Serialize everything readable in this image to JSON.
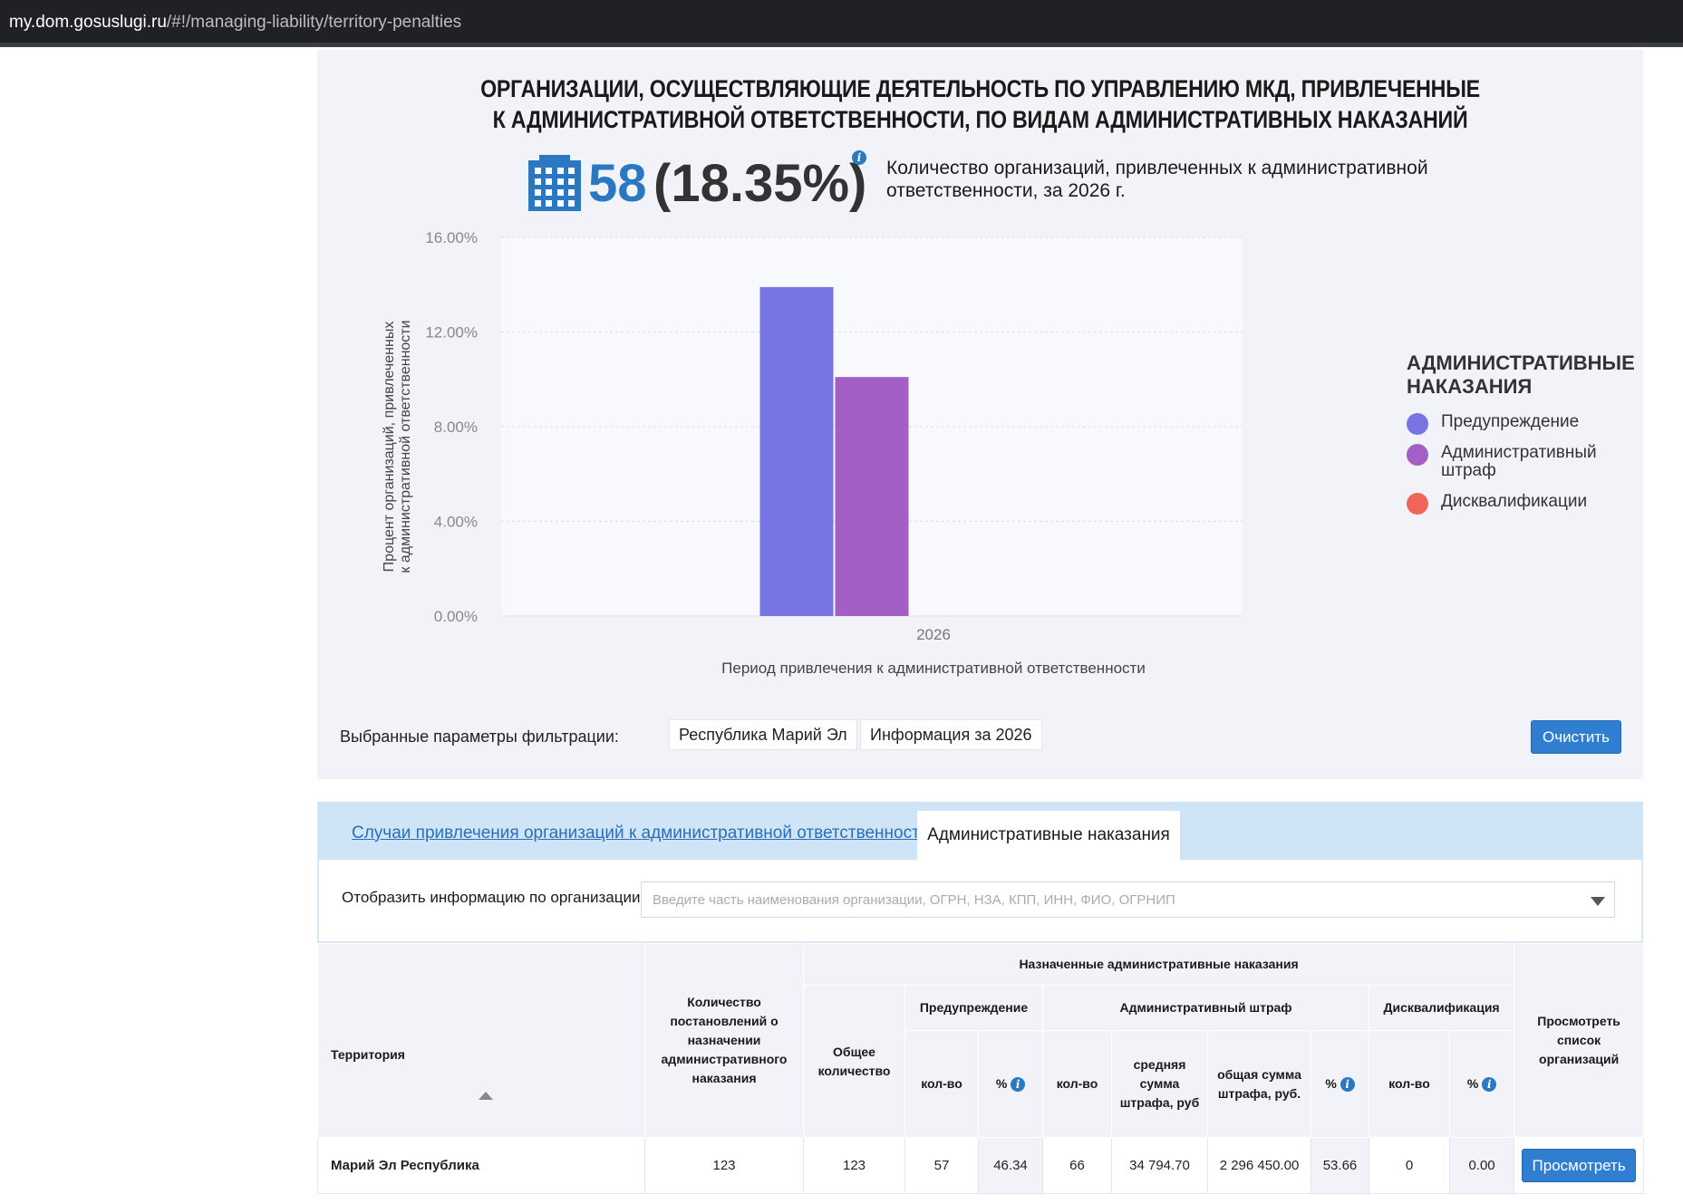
{
  "browser": {
    "url_domain": "my.dom.gosuslugi.ru",
    "url_path": "/#!/managing-liability/territory-penalties"
  },
  "header": {
    "title_line1": "ОРГАНИЗАЦИИ, ОСУЩЕСТВЛЯЮЩИЕ ДЕЯТЕЛЬНОСТЬ ПО УПРАВЛЕНИЮ МКД, ПРИВЛЕЧЕННЫЕ",
    "title_line2": "К АДМИНИСТРАТИВНОЙ ОТВЕТСТВЕННОСТИ, ПО ВИДАМ АДМИНИСТРАТИВНЫХ НАКАЗАНИЙ",
    "kpi_count": "58",
    "kpi_percent": "(18.35%)",
    "kpi_description": "Количество организаций, привлеченных к административной ответственности, за 2026 г.",
    "kpi_icon": "building-icon",
    "info_icon": "info-icon"
  },
  "chart_data": {
    "type": "bar",
    "categories": [
      "2026"
    ],
    "series": [
      {
        "name": "Предупреждение",
        "values": [
          13.9
        ],
        "color": "#7675e3"
      },
      {
        "name": "Административный штраф",
        "values": [
          10.1
        ],
        "color": "#a45fc7"
      },
      {
        "name": "Дисквалификации",
        "values": [
          0
        ],
        "color": "#f06759"
      }
    ],
    "ylim": [
      0,
      16
    ],
    "yticks": [
      "0.00%",
      "4.00%",
      "8.00%",
      "12.00%",
      "16.00%"
    ],
    "ylabel_line1": "Процент организаций, привлеченных",
    "ylabel_line2": "к административной ответственности",
    "xlabel": "Период привлечения к административной ответственности",
    "legend_title_line1": "АДМИНИСТРАТИВНЫЕ",
    "legend_title_line2": "НАКАЗАНИЯ",
    "legend_placement": "right",
    "grid": true
  },
  "filters": {
    "label": "Выбранные параметры фильтрации:",
    "chips": [
      "Республика Марий Эл",
      "Информация за 2026"
    ],
    "clear_label": "Очистить"
  },
  "tabs": {
    "link_label": "Случаи привлечения организаций к административной ответственности",
    "active_label": "Административные наказания"
  },
  "org_filter": {
    "label": "Отобразить информацию по организации",
    "placeholder": "Введите часть наименования организации, ОГРН, НЗА, КПП, ИНН, ФИО, ОГРНИП",
    "value": ""
  },
  "table": {
    "headers": {
      "territory": "Территория",
      "decisions_count": "Количество постановлений о назначении административного наказания",
      "assigned_group": "Назначенные административные наказания",
      "total": "Общее количество",
      "warning": "Предупреждение",
      "fine": "Административный штраф",
      "disqualification": "Дисквалификация",
      "view_list": "Просмотреть список организаций",
      "count": "кол-во",
      "percent": "%",
      "avg_fine": "средняя сумма штрафа, руб",
      "total_fine": "общая сумма штрафа, руб."
    },
    "rows": [
      {
        "territory": "Марий Эл Республика",
        "decisions": "123",
        "total": "123",
        "warning_count": "57",
        "warning_pct": "46.34",
        "fine_count": "66",
        "fine_avg": "34 794.70",
        "fine_total": "2 296 450.00",
        "fine_pct": "53.66",
        "disq_count": "0",
        "disq_pct": "0.00",
        "view_label": "Просмотреть"
      }
    ]
  }
}
